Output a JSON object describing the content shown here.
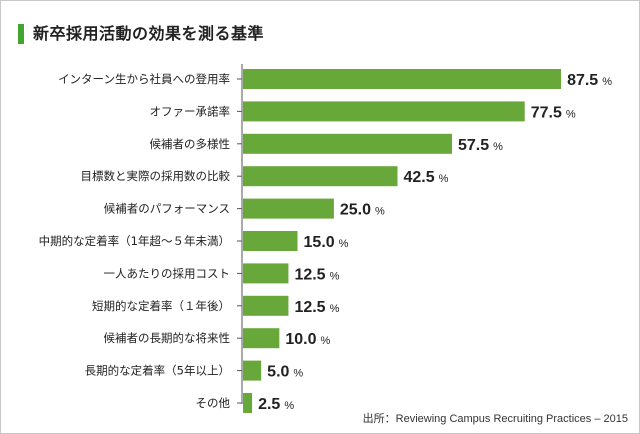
{
  "colors": {
    "bar": "#68a83b",
    "accent": "#41a62f",
    "axis": "#555555"
  },
  "chart_data": {
    "type": "bar",
    "orientation": "horizontal",
    "title": "新卒採用活動の効果を測る基準",
    "categories": [
      "インターン生から社員への登用率",
      "オファー承諾率",
      "候補者の多様性",
      "目標数と実際の採用数の比較",
      "候補者のパフォーマンス",
      "中期的な定着率（1年超〜５年未満）",
      "一人あたりの採用コスト",
      "短期的な定着率（１年後）",
      "候補者の長期的な将来性",
      "長期的な定着率（5年以上）",
      "その他"
    ],
    "values": [
      87.5,
      77.5,
      57.5,
      42.5,
      25.0,
      15.0,
      12.5,
      12.5,
      10.0,
      5.0,
      2.5
    ],
    "value_labels": [
      "87.5",
      "77.5",
      "57.5",
      "42.5",
      "25.0",
      "15.0",
      "12.5",
      "12.5",
      "10.0",
      "5.0",
      "2.5"
    ],
    "unit": "%",
    "xlim": [
      0,
      100
    ],
    "grid": false,
    "source": "出所：Reviewing Campus Recruiting Practices – 2015"
  }
}
